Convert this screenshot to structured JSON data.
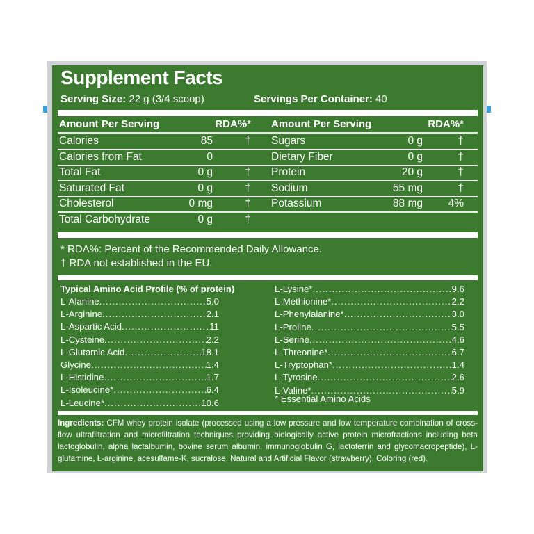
{
  "title": "Supplement Facts",
  "serving_size_label": "Serving Size:",
  "serving_size": "22 g (3/4 scoop)",
  "servings_label": "Servings Per Container:",
  "servings": "40",
  "header": {
    "amount": "Amount Per Serving",
    "rda": "RDA%*"
  },
  "left_rows": [
    {
      "name": "Calories",
      "amount": "85",
      "rda": "†"
    },
    {
      "name": "Calories from Fat",
      "amount": "0",
      "rda": ""
    },
    {
      "name": "Total Fat",
      "amount": "0 g",
      "rda": "†"
    },
    {
      "name": "Saturated Fat",
      "amount": "0 g",
      "rda": "†"
    },
    {
      "name": "Cholesterol",
      "amount": "0 mg",
      "rda": "†"
    },
    {
      "name": "Total Carbohydrate",
      "amount": "0 g",
      "rda": "†"
    }
  ],
  "right_rows": [
    {
      "name": "Sugars",
      "amount": "0 g",
      "rda": "†"
    },
    {
      "name": "Dietary Fiber",
      "amount": "0 g",
      "rda": "†"
    },
    {
      "name": "Protein",
      "amount": "20 g",
      "rda": "†"
    },
    {
      "name": "Sodium",
      "amount": "55 mg",
      "rda": "†"
    },
    {
      "name": "Potassium",
      "amount": "88 mg",
      "rda": "4%"
    }
  ],
  "footnotes": [
    "* RDA%: Percent of the Recommended Daily Allowance.",
    "† RDA not established in the EU."
  ],
  "amino_title": "Typical Amino Acid Profile (% of protein)",
  "amino_left": [
    {
      "name": "L-Alanine",
      "value": "5.0"
    },
    {
      "name": "L-Arginine",
      "value": "2.1"
    },
    {
      "name": "L-Aspartic Acid",
      "value": "11"
    },
    {
      "name": "L-Cysteine",
      "value": "2.2"
    },
    {
      "name": "L-Glutamic Acid",
      "value": "18.1"
    },
    {
      "name": "Glycine",
      "value": "1.4"
    },
    {
      "name": "L-Histidine",
      "value": "1.7"
    },
    {
      "name": "L-Isoleucine*",
      "value": "6.4"
    },
    {
      "name": "L-Leucine*",
      "value": "10.6"
    }
  ],
  "amino_right": [
    {
      "name": "L-Lysine*",
      "value": "9.6"
    },
    {
      "name": "L-Methionine*",
      "value": "2.2"
    },
    {
      "name": "L-Phenylalanine*",
      "value": "3.0"
    },
    {
      "name": "L-Proline",
      "value": "5.5"
    },
    {
      "name": "L-Serine",
      "value": "4.6"
    },
    {
      "name": "L-Threonine*",
      "value": "6.7"
    },
    {
      "name": "L-Tryptophan*",
      "value": "1.4"
    },
    {
      "name": "L-Tyrosine",
      "value": "2.6"
    },
    {
      "name": "L-Valine*",
      "value": "5.9"
    }
  ],
  "amino_note": "* Essential Amino Acids",
  "ingredients_label": "Ingredients:",
  "ingredients": "CFM whey protein isolate (processed using a low pressure and low temperature combination of cross-flow ultrafiltration and microfiltration techniques providing biologically active protein microfractions including beta lactoglobulin, alpha lactalbumin, bovine serum albumin, immunoglobulin G, lactoferrin and glycomacropeptide), L-glutamine, L-arginine, acesulfame-K, sucralose, Natural and Artificial Flavor (strawberry), Coloring (red).",
  "colors": {
    "panel": "#3b7a2f",
    "frame": "#cfd3d6",
    "text": "#ffffff"
  }
}
